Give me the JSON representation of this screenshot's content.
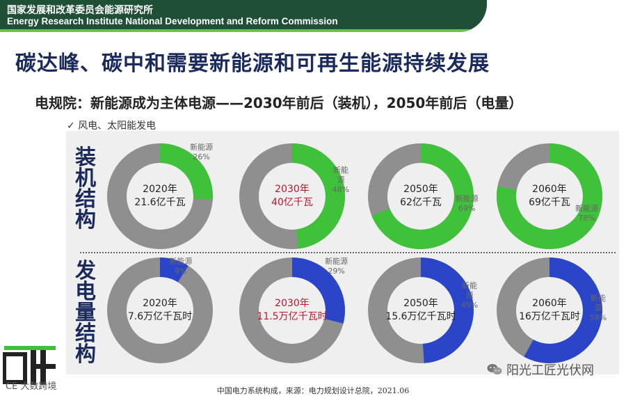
{
  "header": {
    "org_cn": "国家发展和改革委员会能源研究所",
    "org_en": "Energy Research Institute National Development and Reform Commission"
  },
  "title": "碳达峰、碳中和需要新能源和可再生能源持续发展",
  "subtitle": "电规院：新能源成为主体电源——2030年前后（装机），2050年前后（电量）",
  "note": "✓ 风电、太阳能发电",
  "row_labels": [
    "装机结构",
    "发电量结构"
  ],
  "colors": {
    "capacity": "#3fc13a",
    "generation": "#2b45c9",
    "other": "#8f8f8f",
    "center_red": "#c0142c"
  },
  "chart_data": [
    {
      "type": "pie",
      "row": "装机结构",
      "share_label": "新能源",
      "donuts": [
        {
          "year": "2020年",
          "total": "21.6亿千瓦",
          "new_energy_pct": 26,
          "pct_label": "26%"
        },
        {
          "year": "2030年",
          "total": "40亿千瓦",
          "new_energy_pct": 48,
          "pct_label": "48%",
          "highlight": true
        },
        {
          "year": "2050年",
          "total": "62亿千瓦",
          "new_energy_pct": 69,
          "pct_label": "69%"
        },
        {
          "year": "2060年",
          "total": "69亿千瓦",
          "new_energy_pct": 78,
          "pct_label": "78%"
        }
      ]
    },
    {
      "type": "pie",
      "row": "发电量结构",
      "share_label": "新能源",
      "donuts": [
        {
          "year": "2020年",
          "total": "7.6万亿千瓦时",
          "new_energy_pct": 9,
          "pct_label": "9%"
        },
        {
          "year": "2030年",
          "total": "11.5万亿千瓦时",
          "new_energy_pct": 29,
          "pct_label": "29%",
          "highlight": true
        },
        {
          "year": "2050年",
          "total": "15.6万亿千瓦时",
          "new_energy_pct": 49,
          "pct_label": "49%"
        },
        {
          "year": "2060年",
          "total": "16万亿千瓦时",
          "new_energy_pct": 58,
          "pct_label": "58%"
        }
      ]
    }
  ],
  "source": "中国电力系统构成，来源：电力规划设计总院，2021.06",
  "watermark": "阳光工匠光伏网",
  "weibo_handle": "CE 大数跨境"
}
